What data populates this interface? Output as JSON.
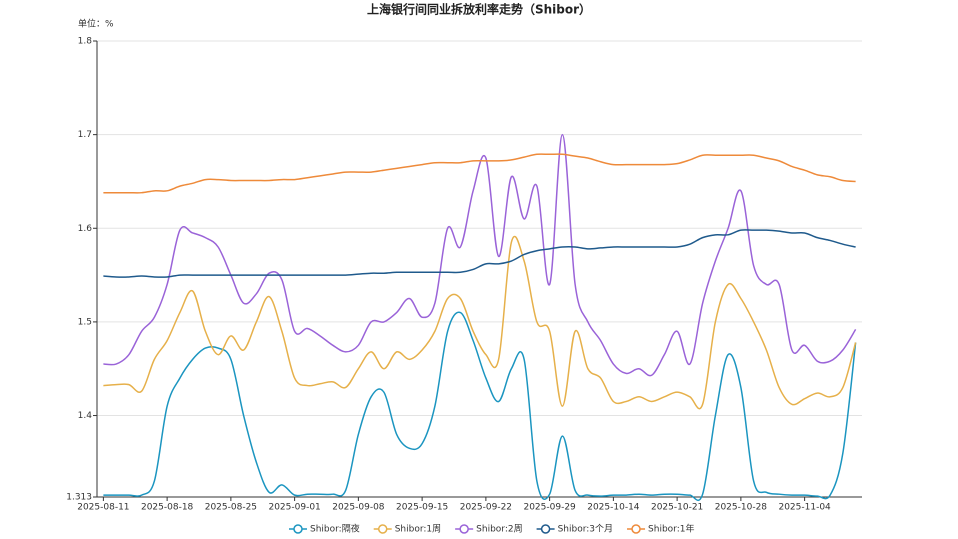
{
  "chart_data": {
    "type": "line",
    "title": "上海银行间同业拆放利率走势（Shibor）",
    "y_unit": "单位：%",
    "categories": [
      "2025-08-11",
      null,
      null,
      null,
      null,
      "2025-08-18",
      null,
      null,
      null,
      null,
      "2025-08-25",
      null,
      null,
      null,
      null,
      "2025-09-01",
      null,
      null,
      null,
      null,
      "2025-09-08",
      null,
      null,
      null,
      null,
      "2025-09-15",
      null,
      null,
      null,
      null,
      "2025-09-22",
      null,
      null,
      null,
      null,
      "2025-09-29",
      null,
      null,
      null,
      null,
      "2025-10-14",
      null,
      null,
      null,
      null,
      "2025-10-21",
      null,
      null,
      null,
      null,
      "2025-10-28",
      null,
      null,
      null,
      null,
      "2025-11-04",
      null,
      null,
      null,
      null
    ],
    "ylim": [
      1.313,
      1.8
    ],
    "yticks": [
      1.313,
      1.4,
      1.5,
      1.6,
      1.7,
      1.8
    ],
    "grid": true,
    "series": [
      {
        "name": "Shibor:隔夜",
        "color": "#1b95c0",
        "values": [
          1.315,
          1.315,
          1.315,
          1.315,
          1.33,
          1.41,
          1.44,
          1.46,
          1.472,
          1.472,
          1.46,
          1.4,
          1.35,
          1.318,
          1.326,
          1.315,
          1.316,
          1.316,
          1.316,
          1.32,
          1.38,
          1.42,
          1.425,
          1.38,
          1.365,
          1.37,
          1.41,
          1.49,
          1.51,
          1.48,
          1.44,
          1.415,
          1.45,
          1.46,
          1.33,
          1.316,
          1.378,
          1.32,
          1.315,
          1.314,
          1.315,
          1.315,
          1.316,
          1.315,
          1.316,
          1.316,
          1.315,
          1.316,
          1.4,
          1.465,
          1.43,
          1.33,
          1.318,
          1.316,
          1.315,
          1.315,
          1.314,
          1.315,
          1.36,
          1.478
        ]
      },
      {
        "name": "Shibor:1周",
        "color": "#e6b04a",
        "values": [
          1.432,
          1.433,
          1.433,
          1.426,
          1.46,
          1.48,
          1.51,
          1.533,
          1.49,
          1.465,
          1.485,
          1.47,
          1.5,
          1.527,
          1.49,
          1.44,
          1.432,
          1.434,
          1.436,
          1.43,
          1.45,
          1.468,
          1.45,
          1.468,
          1.46,
          1.47,
          1.49,
          1.525,
          1.525,
          1.49,
          1.465,
          1.46,
          1.585,
          1.565,
          1.5,
          1.49,
          1.41,
          1.49,
          1.45,
          1.44,
          1.415,
          1.415,
          1.42,
          1.415,
          1.42,
          1.425,
          1.42,
          1.412,
          1.5,
          1.54,
          1.525,
          1.5,
          1.47,
          1.43,
          1.412,
          1.418,
          1.424,
          1.42,
          1.43,
          1.478
        ]
      },
      {
        "name": "Shibor:2周",
        "color": "#9a63d8",
        "values": [
          1.455,
          1.455,
          1.465,
          1.49,
          1.505,
          1.54,
          1.598,
          1.595,
          1.59,
          1.58,
          1.55,
          1.52,
          1.53,
          1.552,
          1.545,
          1.49,
          1.493,
          1.485,
          1.475,
          1.468,
          1.475,
          1.5,
          1.5,
          1.51,
          1.525,
          1.505,
          1.52,
          1.6,
          1.58,
          1.64,
          1.675,
          1.57,
          1.655,
          1.61,
          1.645,
          1.54,
          1.7,
          1.54,
          1.5,
          1.48,
          1.455,
          1.445,
          1.45,
          1.443,
          1.465,
          1.49,
          1.455,
          1.52,
          1.565,
          1.6,
          1.64,
          1.56,
          1.54,
          1.54,
          1.47,
          1.475,
          1.458,
          1.458,
          1.47,
          1.492
        ]
      },
      {
        "name": "Shibor:3个月",
        "color": "#1f5a8c",
        "values": [
          1.549,
          1.548,
          1.548,
          1.549,
          1.548,
          1.548,
          1.55,
          1.55,
          1.55,
          1.55,
          1.55,
          1.55,
          1.55,
          1.55,
          1.55,
          1.55,
          1.55,
          1.55,
          1.55,
          1.55,
          1.551,
          1.552,
          1.552,
          1.553,
          1.553,
          1.553,
          1.553,
          1.553,
          1.553,
          1.556,
          1.562,
          1.562,
          1.565,
          1.572,
          1.576,
          1.578,
          1.58,
          1.58,
          1.578,
          1.579,
          1.58,
          1.58,
          1.58,
          1.58,
          1.58,
          1.58,
          1.583,
          1.59,
          1.593,
          1.593,
          1.598,
          1.598,
          1.598,
          1.597,
          1.595,
          1.595,
          1.59,
          1.587,
          1.583,
          1.58
        ]
      },
      {
        "name": "Shibor:1年",
        "color": "#ee8a3a",
        "values": [
          1.638,
          1.638,
          1.638,
          1.638,
          1.64,
          1.64,
          1.645,
          1.648,
          1.652,
          1.652,
          1.651,
          1.651,
          1.651,
          1.651,
          1.652,
          1.652,
          1.654,
          1.656,
          1.658,
          1.66,
          1.66,
          1.66,
          1.662,
          1.664,
          1.666,
          1.668,
          1.67,
          1.67,
          1.67,
          1.672,
          1.672,
          1.672,
          1.673,
          1.676,
          1.679,
          1.679,
          1.679,
          1.677,
          1.675,
          1.671,
          1.668,
          1.668,
          1.668,
          1.668,
          1.668,
          1.669,
          1.673,
          1.678,
          1.678,
          1.678,
          1.678,
          1.678,
          1.675,
          1.672,
          1.666,
          1.662,
          1.657,
          1.655,
          1.651,
          1.65
        ]
      }
    ]
  }
}
